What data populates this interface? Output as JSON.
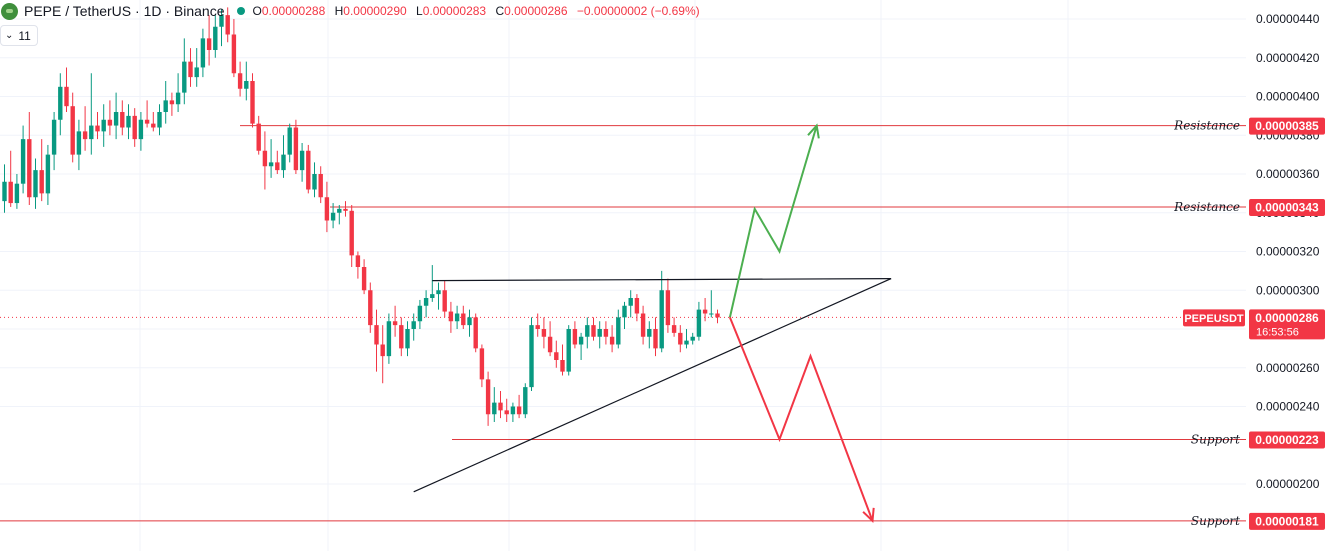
{
  "header": {
    "symbol": "PEPE / TetherUS · 1D · Binance",
    "o_label": "O",
    "o_value": "0.00000288",
    "h_label": "H",
    "h_value": "0.00000290",
    "l_label": "L",
    "l_value": "0.00000283",
    "c_label": "C",
    "c_value": "0.00000286",
    "change": "−0.00000002 (−0.69%)",
    "indicator_badge": "11"
  },
  "colors": {
    "up": "#089981",
    "down": "#f23645",
    "level_line": "#e0393e",
    "bull_arrow": "#4caf50",
    "bear_arrow": "#f23645",
    "trend": "#131722"
  },
  "chart_data": {
    "type": "candlestick",
    "symbol": "PEPEUSDT",
    "ylim": [
      1.7e-06,
      4.5e-06
    ],
    "y_ticks": [
      "0.00000440",
      "0.00000420",
      "0.00000400",
      "0.00000380",
      "0.00000360",
      "0.00000340",
      "0.00000320",
      "0.00000300",
      "0.00000280",
      "0.00000260",
      "0.00000240",
      "0.00000200"
    ],
    "price_label": "PEPEUSDT",
    "price_value": "0.00000286",
    "countdown": "16:53:56",
    "levels": [
      {
        "label": "Resistance",
        "value": "0.00000385",
        "price": 3.85e-06
      },
      {
        "label": "Resistance",
        "value": "0.00000343",
        "price": 3.43e-06
      },
      {
        "label": "Support",
        "value": "0.00000223",
        "price": 2.23e-06
      },
      {
        "label": "Support",
        "value": "0.00000181",
        "price": 1.81e-06
      }
    ],
    "candles": [
      [
        1,
        3.46e-06,
        3.65e-06,
        3.4e-06,
        3.56e-06
      ],
      [
        2,
        3.56e-06,
        3.72e-06,
        3.43e-06,
        3.45e-06
      ],
      [
        3,
        3.45e-06,
        3.6e-06,
        3.42e-06,
        3.55e-06
      ],
      [
        4,
        3.55e-06,
        3.85e-06,
        3.5e-06,
        3.78e-06
      ],
      [
        5,
        3.78e-06,
        3.92e-06,
        3.44e-06,
        3.48e-06
      ],
      [
        6,
        3.48e-06,
        3.68e-06,
        3.42e-06,
        3.62e-06
      ],
      [
        7,
        3.62e-06,
        3.78e-06,
        3.46e-06,
        3.5e-06
      ],
      [
        8,
        3.5e-06,
        3.75e-06,
        3.44e-06,
        3.7e-06
      ],
      [
        9,
        3.7e-06,
        3.92e-06,
        3.62e-06,
        3.88e-06
      ],
      [
        10,
        3.88e-06,
        4.12e-06,
        3.8e-06,
        4.05e-06
      ],
      [
        11,
        4.05e-06,
        4.15e-06,
        3.92e-06,
        3.95e-06
      ],
      [
        12,
        3.95e-06,
        4.02e-06,
        3.66e-06,
        3.7e-06
      ],
      [
        13,
        3.7e-06,
        3.88e-06,
        3.62e-06,
        3.82e-06
      ],
      [
        14,
        3.82e-06,
        3.95e-06,
        3.72e-06,
        3.78e-06
      ],
      [
        15,
        3.78e-06,
        4.12e-06,
        3.7e-06,
        3.85e-06
      ],
      [
        16,
        3.85e-06,
        3.92e-06,
        3.78e-06,
        3.82e-06
      ],
      [
        17,
        3.82e-06,
        3.96e-06,
        3.74e-06,
        3.88e-06
      ],
      [
        18,
        3.88e-06,
        3.98e-06,
        3.8e-06,
        3.85e-06
      ],
      [
        19,
        3.85e-06,
        4.02e-06,
        3.78e-06,
        3.92e-06
      ],
      [
        20,
        3.92e-06,
        3.98e-06,
        3.8e-06,
        3.84e-06
      ],
      [
        21,
        3.84e-06,
        3.96e-06,
        3.78e-06,
        3.9e-06
      ],
      [
        22,
        3.9e-06,
        3.94e-06,
        3.74e-06,
        3.78e-06
      ],
      [
        23,
        3.78e-06,
        3.92e-06,
        3.72e-06,
        3.88e-06
      ],
      [
        24,
        3.88e-06,
        3.98e-06,
        3.84e-06,
        3.86e-06
      ],
      [
        25,
        3.86e-06,
        3.92e-06,
        3.82e-06,
        3.84e-06
      ],
      [
        26,
        3.84e-06,
        3.96e-06,
        3.8e-06,
        3.92e-06
      ],
      [
        27,
        3.92e-06,
        4.08e-06,
        3.86e-06,
        3.98e-06
      ],
      [
        28,
        3.98e-06,
        4.02e-06,
        3.9e-06,
        3.96e-06
      ],
      [
        29,
        3.96e-06,
        4.12e-06,
        3.92e-06,
        4.02e-06
      ],
      [
        30,
        4.02e-06,
        4.3e-06,
        3.96e-06,
        4.18e-06
      ],
      [
        31,
        4.18e-06,
        4.25e-06,
        4.05e-06,
        4.1e-06
      ],
      [
        32,
        4.1e-06,
        4.25e-06,
        4.05e-06,
        4.15e-06
      ],
      [
        33,
        4.15e-06,
        4.35e-06,
        4.1e-06,
        4.3e-06
      ],
      [
        34,
        4.3e-06,
        4.42e-06,
        4.16e-06,
        4.24e-06
      ],
      [
        35,
        4.24e-06,
        4.42e-06,
        4.2e-06,
        4.36e-06
      ],
      [
        36,
        4.36e-06,
        4.45e-06,
        4.26e-06,
        4.42e-06
      ],
      [
        37,
        4.42e-06,
        4.46e-06,
        4.28e-06,
        4.32e-06
      ],
      [
        38,
        4.32e-06,
        4.4e-06,
        4.1e-06,
        4.12e-06
      ],
      [
        39,
        4.12e-06,
        4.18e-06,
        4e-06,
        4.04e-06
      ],
      [
        40,
        4.04e-06,
        4.18e-06,
        3.98e-06,
        4.08e-06
      ],
      [
        41,
        4.08e-06,
        4.12e-06,
        3.84e-06,
        3.86e-06
      ],
      [
        42,
        3.86e-06,
        3.9e-06,
        3.7e-06,
        3.72e-06
      ],
      [
        43,
        3.72e-06,
        3.82e-06,
        3.52e-06,
        3.64e-06
      ],
      [
        44,
        3.64e-06,
        3.78e-06,
        3.58e-06,
        3.66e-06
      ],
      [
        45,
        3.66e-06,
        3.72e-06,
        3.6e-06,
        3.62e-06
      ],
      [
        46,
        3.62e-06,
        3.8e-06,
        3.58e-06,
        3.7e-06
      ],
      [
        47,
        3.7e-06,
        3.86e-06,
        3.66e-06,
        3.84e-06
      ],
      [
        48,
        3.84e-06,
        3.88e-06,
        3.6e-06,
        3.62e-06
      ],
      [
        49,
        3.62e-06,
        3.76e-06,
        3.56e-06,
        3.72e-06
      ],
      [
        50,
        3.72e-06,
        3.75e-06,
        3.5e-06,
        3.52e-06
      ],
      [
        51,
        3.52e-06,
        3.66e-06,
        3.48e-06,
        3.6e-06
      ],
      [
        52,
        3.6e-06,
        3.64e-06,
        3.45e-06,
        3.48e-06
      ],
      [
        53,
        3.48e-06,
        3.56e-06,
        3.3e-06,
        3.36e-06
      ],
      [
        54,
        3.36e-06,
        3.45e-06,
        3.32e-06,
        3.4e-06
      ],
      [
        55,
        3.4e-06,
        3.44e-06,
        3.34e-06,
        3.42e-06
      ],
      [
        56,
        3.42e-06,
        3.46e-06,
        3.38e-06,
        3.41e-06
      ],
      [
        57,
        3.41e-06,
        3.44e-06,
        3.12e-06,
        3.18e-06
      ],
      [
        58,
        3.18e-06,
        3.2e-06,
        3.06e-06,
        3.12e-06
      ],
      [
        59,
        3.12e-06,
        3.16e-06,
        2.98e-06,
        3e-06
      ],
      [
        60,
        3e-06,
        3.04e-06,
        2.78e-06,
        2.82e-06
      ],
      [
        61,
        2.82e-06,
        2.9e-06,
        2.58e-06,
        2.72e-06
      ],
      [
        62,
        2.72e-06,
        2.82e-06,
        2.52e-06,
        2.66e-06
      ],
      [
        63,
        2.66e-06,
        2.88e-06,
        2.62e-06,
        2.84e-06
      ],
      [
        64,
        2.84e-06,
        2.92e-06,
        2.76e-06,
        2.82e-06
      ],
      [
        65,
        2.82e-06,
        2.86e-06,
        2.66e-06,
        2.7e-06
      ],
      [
        66,
        2.7e-06,
        2.84e-06,
        2.66e-06,
        2.8e-06
      ],
      [
        67,
        2.8e-06,
        2.88e-06,
        2.74e-06,
        2.84e-06
      ],
      [
        68,
        2.84e-06,
        2.95e-06,
        2.8e-06,
        2.92e-06
      ],
      [
        69,
        2.92e-06,
        3e-06,
        2.86e-06,
        2.96e-06
      ],
      [
        70,
        2.96e-06,
        3.13e-06,
        2.94e-06,
        2.98e-06
      ],
      [
        71,
        2.98e-06,
        3.04e-06,
        2.9e-06,
        3e-06
      ],
      [
        72,
        3e-06,
        3.05e-06,
        2.86e-06,
        2.89e-06
      ],
      [
        73,
        2.89e-06,
        2.94e-06,
        2.78e-06,
        2.84e-06
      ],
      [
        74,
        2.84e-06,
        2.92e-06,
        2.8e-06,
        2.88e-06
      ],
      [
        75,
        2.88e-06,
        2.92e-06,
        2.8e-06,
        2.82e-06
      ],
      [
        76,
        2.82e-06,
        2.9e-06,
        2.76e-06,
        2.86e-06
      ],
      [
        77,
        2.86e-06,
        2.88e-06,
        2.68e-06,
        2.7e-06
      ],
      [
        78,
        2.7e-06,
        2.72e-06,
        2.5e-06,
        2.54e-06
      ],
      [
        79,
        2.54e-06,
        2.58e-06,
        2.3e-06,
        2.36e-06
      ],
      [
        80,
        2.36e-06,
        2.5e-06,
        2.32e-06,
        2.42e-06
      ],
      [
        81,
        2.42e-06,
        2.48e-06,
        2.34e-06,
        2.38e-06
      ],
      [
        82,
        2.38e-06,
        2.44e-06,
        2.32e-06,
        2.36e-06
      ],
      [
        83,
        2.36e-06,
        2.42e-06,
        2.32e-06,
        2.4e-06
      ],
      [
        84,
        2.4e-06,
        2.46e-06,
        2.34e-06,
        2.36e-06
      ],
      [
        85,
        2.36e-06,
        2.52e-06,
        2.34e-06,
        2.5e-06
      ],
      [
        86,
        2.5e-06,
        2.86e-06,
        2.48e-06,
        2.82e-06
      ],
      [
        87,
        2.82e-06,
        2.88e-06,
        2.76e-06,
        2.8e-06
      ],
      [
        88,
        2.8e-06,
        2.86e-06,
        2.7e-06,
        2.76e-06
      ],
      [
        89,
        2.76e-06,
        2.84e-06,
        2.66e-06,
        2.68e-06
      ],
      [
        90,
        2.68e-06,
        2.74e-06,
        2.6e-06,
        2.64e-06
      ],
      [
        91,
        2.64e-06,
        2.72e-06,
        2.56e-06,
        2.58e-06
      ],
      [
        92,
        2.58e-06,
        2.82e-06,
        2.56e-06,
        2.8e-06
      ],
      [
        93,
        2.8e-06,
        2.84e-06,
        2.7e-06,
        2.72e-06
      ],
      [
        94,
        2.72e-06,
        2.78e-06,
        2.64e-06,
        2.76e-06
      ],
      [
        95,
        2.76e-06,
        2.86e-06,
        2.7e-06,
        2.82e-06
      ],
      [
        96,
        2.82e-06,
        2.86e-06,
        2.74e-06,
        2.76e-06
      ],
      [
        97,
        2.76e-06,
        2.84e-06,
        2.7e-06,
        2.8e-06
      ],
      [
        98,
        2.8e-06,
        2.84e-06,
        2.72e-06,
        2.76e-06
      ],
      [
        99,
        2.76e-06,
        2.82e-06,
        2.68e-06,
        2.72e-06
      ],
      [
        100,
        2.72e-06,
        2.9e-06,
        2.7e-06,
        2.86e-06
      ],
      [
        101,
        2.86e-06,
        2.94e-06,
        2.8e-06,
        2.92e-06
      ],
      [
        102,
        2.92e-06,
        3e-06,
        2.86e-06,
        2.96e-06
      ],
      [
        103,
        2.96e-06,
        2.98e-06,
        2.84e-06,
        2.88e-06
      ],
      [
        104,
        2.88e-06,
        2.92e-06,
        2.72e-06,
        2.76e-06
      ],
      [
        105,
        2.76e-06,
        2.84e-06,
        2.7e-06,
        2.8e-06
      ],
      [
        106,
        2.8e-06,
        2.86e-06,
        2.66e-06,
        2.7e-06
      ],
      [
        107,
        2.7e-06,
        3.1e-06,
        2.68e-06,
        3e-06
      ],
      [
        108,
        3e-06,
        3.06e-06,
        2.78e-06,
        2.82e-06
      ],
      [
        109,
        2.82e-06,
        2.86e-06,
        2.76e-06,
        2.78e-06
      ],
      [
        110,
        2.78e-06,
        2.82e-06,
        2.68e-06,
        2.72e-06
      ],
      [
        111,
        2.72e-06,
        2.8e-06,
        2.7e-06,
        2.74e-06
      ],
      [
        112,
        2.74e-06,
        2.78e-06,
        2.72e-06,
        2.76e-06
      ],
      [
        113,
        2.76e-06,
        2.94e-06,
        2.74e-06,
        2.9e-06
      ],
      [
        114,
        2.9e-06,
        2.96e-06,
        2.84e-06,
        2.88e-06
      ],
      [
        115,
        2.88e-06,
        3e-06,
        2.86e-06,
        2.88e-06
      ],
      [
        116,
        2.88e-06,
        2.9e-06,
        2.83e-06,
        2.86e-06
      ]
    ],
    "trend_upper": [
      [
        70,
        3.05e-06
      ],
      [
        144,
        3.06e-06
      ]
    ],
    "trend_lower": [
      [
        67,
        1.96e-06
      ],
      [
        144,
        3.06e-06
      ]
    ],
    "bull_path": [
      [
        118,
        2.86e-06
      ],
      [
        122,
        3.42e-06
      ],
      [
        126,
        3.2e-06
      ],
      [
        132,
        3.85e-06
      ]
    ],
    "bear_path": [
      [
        118,
        2.86e-06
      ],
      [
        126,
        2.23e-06
      ],
      [
        131,
        2.66e-06
      ],
      [
        141,
        1.81e-06
      ]
    ]
  }
}
